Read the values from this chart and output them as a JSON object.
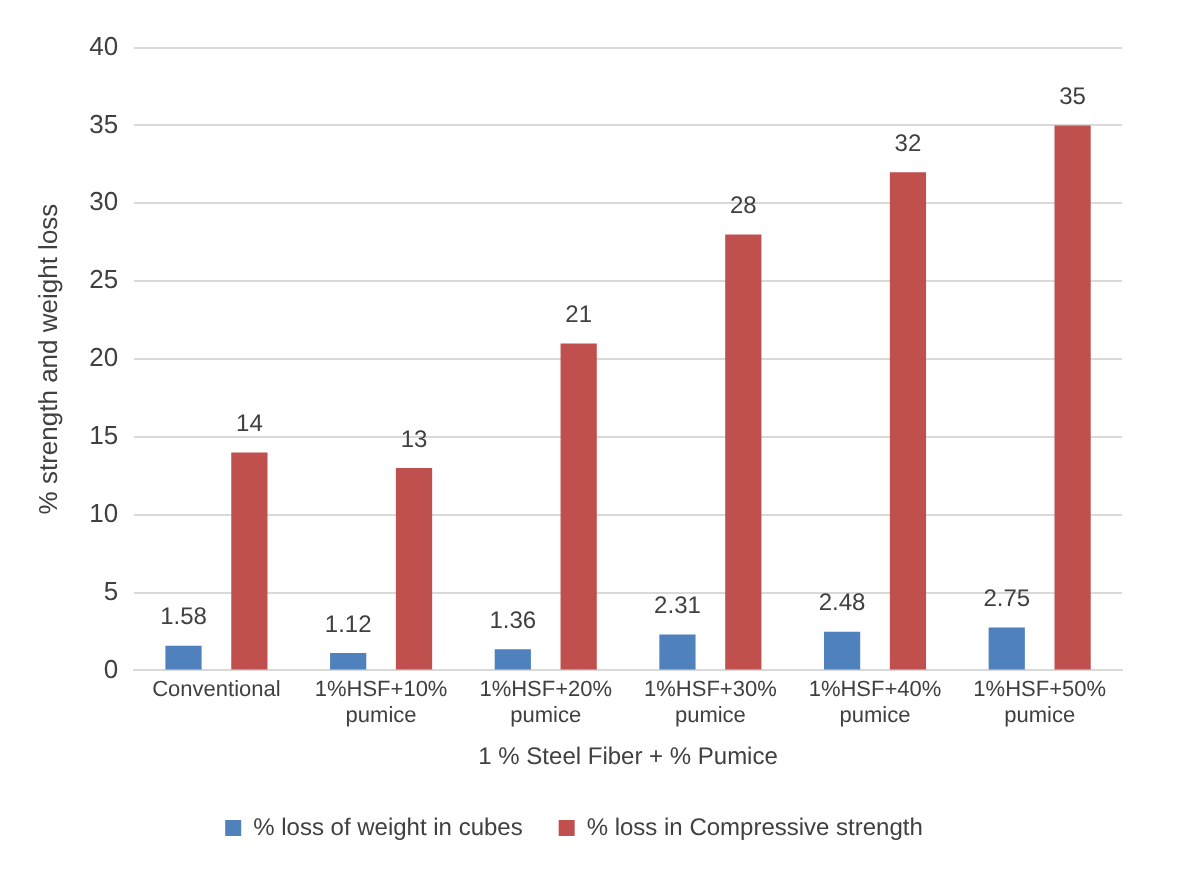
{
  "chart_data": {
    "type": "bar",
    "xlabel": "1 % Steel Fiber + % Pumice",
    "ylabel": "% strength and weight loss",
    "categories": [
      "Conventional",
      "1%HSF+10% pumice",
      "1%HSF+20% pumice",
      "1%HSF+30% pumice",
      "1%HSF+40% pumice",
      "1%HSF+50% pumice"
    ],
    "series": [
      {
        "name": "% loss of weight in cubes",
        "color": "#4f81bd",
        "values": [
          1.58,
          1.12,
          1.36,
          2.31,
          2.48,
          2.75
        ]
      },
      {
        "name": "% loss in Compressive strength",
        "color": "#c0504d",
        "values": [
          14,
          13,
          21,
          28,
          32,
          35
        ]
      }
    ],
    "ylim": [
      0,
      40
    ],
    "yticks": [
      0,
      5,
      10,
      15,
      20,
      25,
      30,
      35,
      40
    ],
    "grid": "y",
    "legend": "bottom",
    "data_labels": true
  }
}
